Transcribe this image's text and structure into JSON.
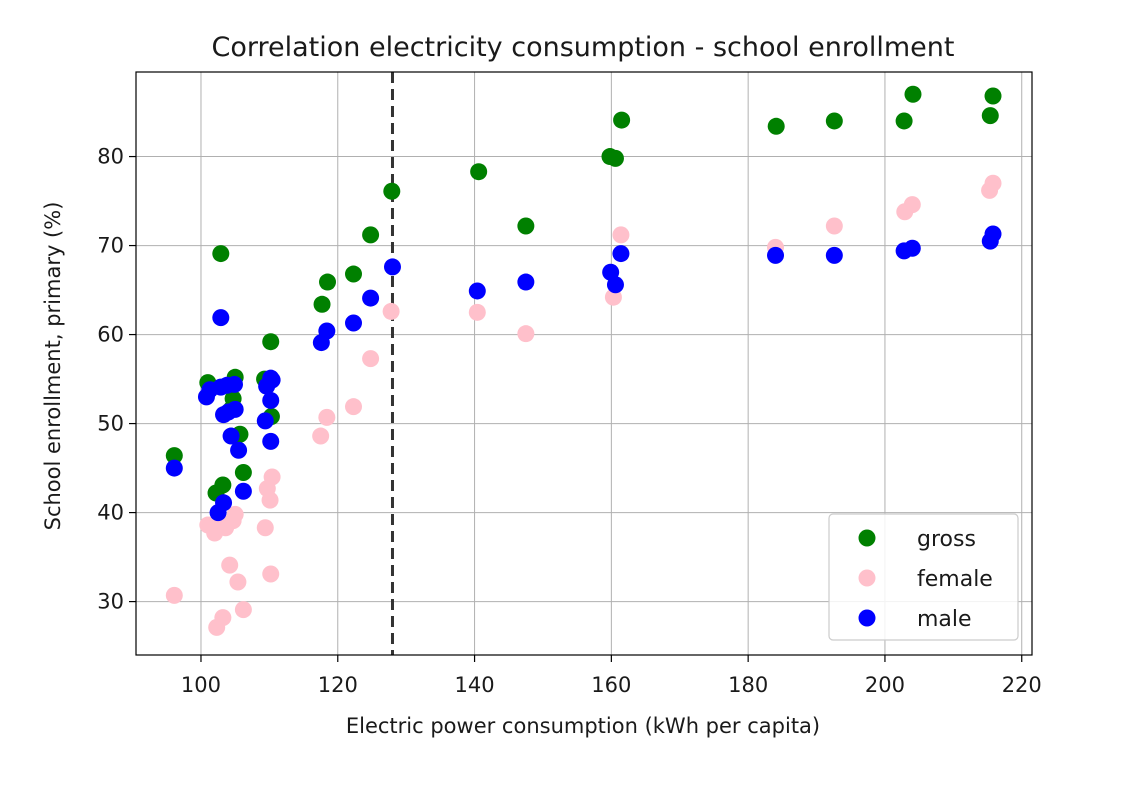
{
  "chart_data": {
    "type": "scatter",
    "title": "Correlation electricity consumption - school enrollment",
    "xlabel": "Electric power consumption (kWh per capita)",
    "ylabel": "School enrollment, primary (%)",
    "xlim": [
      90.5,
      221.5
    ],
    "ylim": [
      24,
      89.5
    ],
    "xticks": [
      100,
      120,
      140,
      160,
      180,
      200,
      220
    ],
    "yticks": [
      30,
      40,
      50,
      60,
      70,
      80
    ],
    "grid": true,
    "legend_position": "lower right",
    "vline": {
      "x": 128,
      "style": "dashed",
      "color": "#333333"
    },
    "series": [
      {
        "name": "gross",
        "color": "#008000",
        "points": [
          [
            96.1,
            46.4
          ],
          [
            101,
            54.6
          ],
          [
            102.2,
            42.2
          ],
          [
            102.9,
            69.1
          ],
          [
            103.2,
            43.1
          ],
          [
            104.4,
            51.6
          ],
          [
            104.7,
            52.8
          ],
          [
            105,
            55.2
          ],
          [
            105.7,
            48.8
          ],
          [
            106.2,
            44.5
          ],
          [
            109.3,
            55.0
          ],
          [
            110.2,
            59.2
          ],
          [
            110.3,
            50.8
          ],
          [
            117.7,
            63.4
          ],
          [
            118.5,
            65.9
          ],
          [
            122.3,
            66.8
          ],
          [
            124.8,
            71.2
          ],
          [
            127.9,
            76.1
          ],
          [
            140.6,
            78.3
          ],
          [
            147.5,
            72.2
          ],
          [
            159.8,
            80.0
          ],
          [
            160.6,
            79.8
          ],
          [
            161.5,
            84.1
          ],
          [
            184.1,
            83.4
          ],
          [
            192.6,
            84.0
          ],
          [
            202.8,
            84.0
          ],
          [
            204.1,
            87.0
          ],
          [
            215.4,
            84.6
          ],
          [
            215.8,
            86.8
          ]
        ]
      },
      {
        "name": "female",
        "color": "#ffc0cb",
        "points": [
          [
            96.1,
            30.7
          ],
          [
            101,
            38.6
          ],
          [
            102,
            37.7
          ],
          [
            102.3,
            27.1
          ],
          [
            102.7,
            39.0
          ],
          [
            103.2,
            28.2
          ],
          [
            103.6,
            38.3
          ],
          [
            104.2,
            34.1
          ],
          [
            104.7,
            39.1
          ],
          [
            105.0,
            39.8
          ],
          [
            105.4,
            32.2
          ],
          [
            106.2,
            29.1
          ],
          [
            109.4,
            38.3
          ],
          [
            109.7,
            42.7
          ],
          [
            110.1,
            41.4
          ],
          [
            110.2,
            33.1
          ],
          [
            110.4,
            44.0
          ],
          [
            117.5,
            48.6
          ],
          [
            118.4,
            50.7
          ],
          [
            122.3,
            51.9
          ],
          [
            124.8,
            57.3
          ],
          [
            127.8,
            62.6
          ],
          [
            140.4,
            62.5
          ],
          [
            147.5,
            60.1
          ],
          [
            160.3,
            64.2
          ],
          [
            161.4,
            71.2
          ],
          [
            184.0,
            69.8
          ],
          [
            192.6,
            72.2
          ],
          [
            202.9,
            73.8
          ],
          [
            204.0,
            74.6
          ],
          [
            215.3,
            76.2
          ],
          [
            215.8,
            77.0
          ]
        ]
      },
      {
        "name": "male",
        "color": "#0000ff",
        "points": [
          [
            96.1,
            45.0
          ],
          [
            100.8,
            53.0
          ],
          [
            101.3,
            53.8
          ],
          [
            102.5,
            40.0
          ],
          [
            102.9,
            54.1
          ],
          [
            102.9,
            61.9
          ],
          [
            103.3,
            51.0
          ],
          [
            103.3,
            41.1
          ],
          [
            103.8,
            54.3
          ],
          [
            104.0,
            51.3
          ],
          [
            104.4,
            48.6
          ],
          [
            104.9,
            54.4
          ],
          [
            105.0,
            51.6
          ],
          [
            105.5,
            47.0
          ],
          [
            106.2,
            42.4
          ],
          [
            109.4,
            50.3
          ],
          [
            109.6,
            54.2
          ],
          [
            110.2,
            52.6
          ],
          [
            110.2,
            48.0
          ],
          [
            110.4,
            54.9
          ],
          [
            110.2,
            55.1
          ],
          [
            117.6,
            59.1
          ],
          [
            118.4,
            60.4
          ],
          [
            122.3,
            61.3
          ],
          [
            124.8,
            64.1
          ],
          [
            128.0,
            67.6
          ],
          [
            140.4,
            64.9
          ],
          [
            147.5,
            65.9
          ],
          [
            159.9,
            67.0
          ],
          [
            160.6,
            65.6
          ],
          [
            161.4,
            69.1
          ],
          [
            184.0,
            68.9
          ],
          [
            192.6,
            68.9
          ],
          [
            202.8,
            69.4
          ],
          [
            204.0,
            69.7
          ],
          [
            215.4,
            70.5
          ],
          [
            215.8,
            71.3
          ]
        ]
      }
    ]
  }
}
